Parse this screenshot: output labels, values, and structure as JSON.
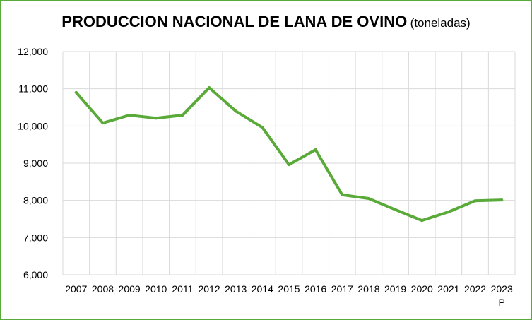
{
  "chart_data": {
    "type": "line",
    "title": "PRODUCCION NACIONAL DE LANA DE OVINO",
    "subtitle": "(toneladas)",
    "xlabel": "",
    "ylabel": "",
    "categories": [
      "2007",
      "2008",
      "2009",
      "2010",
      "2011",
      "2012",
      "2013",
      "2014",
      "2015",
      "2016",
      "2017",
      "2018",
      "2019",
      "2020",
      "2021",
      "2022",
      "2023"
    ],
    "category_notes": {
      "2023": "P"
    },
    "y_tick_labels": [
      "6,000",
      "7,000",
      "8,000",
      "9,000",
      "10,000",
      "11,000",
      "12,000"
    ],
    "ylim": [
      6000,
      12000
    ],
    "y_ticks": [
      6000,
      7000,
      8000,
      9000,
      10000,
      11000,
      12000
    ],
    "grid": true,
    "series": [
      {
        "values": [
          10900,
          10080,
          10290,
          10210,
          10290,
          11030,
          10400,
          9960,
          8960,
          9360,
          8150,
          8050,
          7750,
          7460,
          7690,
          7990,
          8010
        ]
      }
    ],
    "colors": {
      "line": "#5aaa3a",
      "grid": "#d9d9d9",
      "frame": "#5aaa3a"
    }
  }
}
